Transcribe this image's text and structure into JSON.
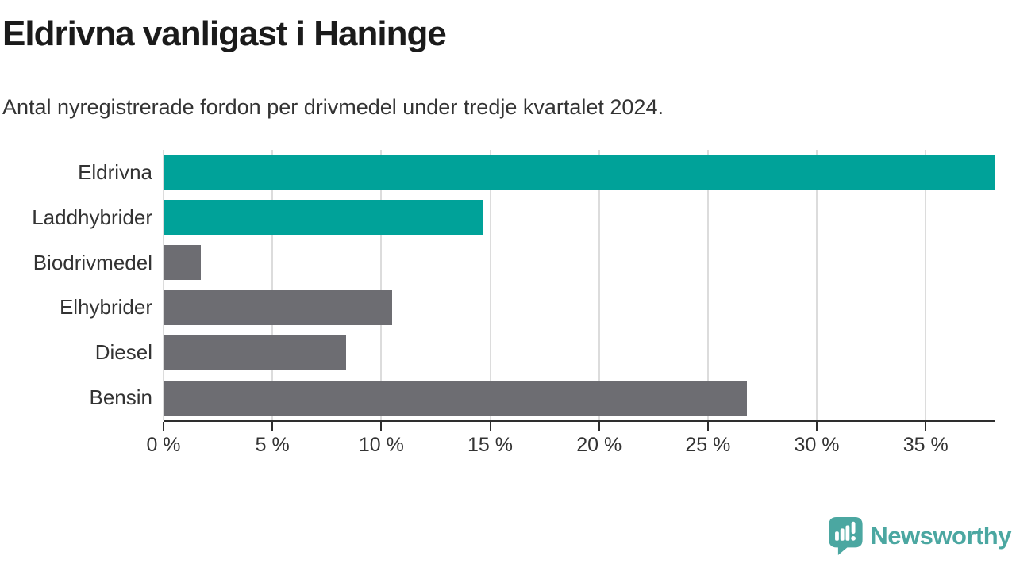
{
  "header": {
    "title": "Eldrivna vanligast i Haninge",
    "subtitle": "Antal nyregistrerade fordon per drivmedel under tredje kvartalet 2024."
  },
  "chart_data": {
    "type": "bar",
    "orientation": "horizontal",
    "title": "Eldrivna vanligast i Haninge",
    "subtitle": "Antal nyregistrerade fordon per drivmedel under tredje kvartalet 2024.",
    "categories": [
      "Eldrivna",
      "Laddhybrider",
      "Biodrivmedel",
      "Elhybrider",
      "Diesel",
      "Bensin"
    ],
    "values": [
      38.2,
      14.7,
      1.7,
      10.5,
      8.4,
      26.8
    ],
    "unit": "%",
    "xlabel": "",
    "ylabel": "",
    "xlim": [
      0,
      38.2
    ],
    "x_ticks": [
      {
        "value": 0,
        "label": "0 %"
      },
      {
        "value": 5,
        "label": "5 %"
      },
      {
        "value": 10,
        "label": "10 %"
      },
      {
        "value": 15,
        "label": "15 %"
      },
      {
        "value": 20,
        "label": "20 %"
      },
      {
        "value": 25,
        "label": "25 %"
      },
      {
        "value": 30,
        "label": "30 %"
      },
      {
        "value": 35,
        "label": "35 %"
      }
    ],
    "grid": true,
    "legend": "none",
    "colors": {
      "highlight": "#00a299",
      "default": "#6d6d72",
      "bar_colors": [
        "#00a299",
        "#00a299",
        "#6d6d72",
        "#6d6d72",
        "#6d6d72",
        "#6d6d72"
      ],
      "gridline": "#dcdcdc",
      "axis_line": "#2e2e2e",
      "text": "#333333",
      "title_text": "#1b1b1b"
    }
  },
  "footer": {
    "brand": "Newsworthy",
    "brand_color": "#4ba7a1"
  }
}
